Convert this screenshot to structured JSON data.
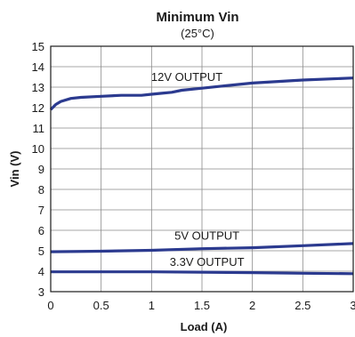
{
  "chart_data": {
    "type": "line",
    "title": "Minimum Vin",
    "subtitle": "(25°C)",
    "xlabel": "Load (A)",
    "ylabel": "Vin (V)",
    "xlim": [
      0,
      3
    ],
    "ylim": [
      3,
      15
    ],
    "xticks": [
      0,
      0.5,
      1,
      1.5,
      2,
      2.5,
      3
    ],
    "xtick_labels": [
      "0",
      "0.5",
      "1",
      "1.5",
      "2",
      "2.5",
      "3"
    ],
    "yticks": [
      3,
      4,
      5,
      6,
      7,
      8,
      9,
      10,
      11,
      12,
      13,
      14,
      15
    ],
    "ytick_labels": [
      "3",
      "4",
      "5",
      "6",
      "7",
      "8",
      "9",
      "10",
      "11",
      "12",
      "13",
      "14",
      "15"
    ],
    "grid": true,
    "line_color": "#2b3a8f",
    "series": [
      {
        "name": "12V OUTPUT",
        "x": [
          0,
          0.05,
          0.1,
          0.2,
          0.3,
          0.5,
          0.7,
          0.9,
          1.0,
          1.1,
          1.2,
          1.3,
          1.5,
          1.7,
          2.0,
          2.5,
          3.0
        ],
        "y": [
          11.9,
          12.15,
          12.3,
          12.45,
          12.5,
          12.55,
          12.6,
          12.6,
          12.65,
          12.7,
          12.75,
          12.85,
          12.95,
          13.05,
          13.2,
          13.35,
          13.45
        ]
      },
      {
        "name": "5V OUTPUT",
        "x": [
          0,
          0.5,
          1.0,
          1.5,
          2.0,
          2.5,
          3.0
        ],
        "y": [
          4.95,
          4.98,
          5.02,
          5.1,
          5.15,
          5.25,
          5.35
        ]
      },
      {
        "name": "3.3V OUTPUT",
        "x": [
          0,
          0.5,
          1.0,
          1.5,
          2.0,
          2.5,
          3.0
        ],
        "y": [
          3.97,
          3.97,
          3.97,
          3.95,
          3.93,
          3.9,
          3.88
        ]
      }
    ]
  }
}
